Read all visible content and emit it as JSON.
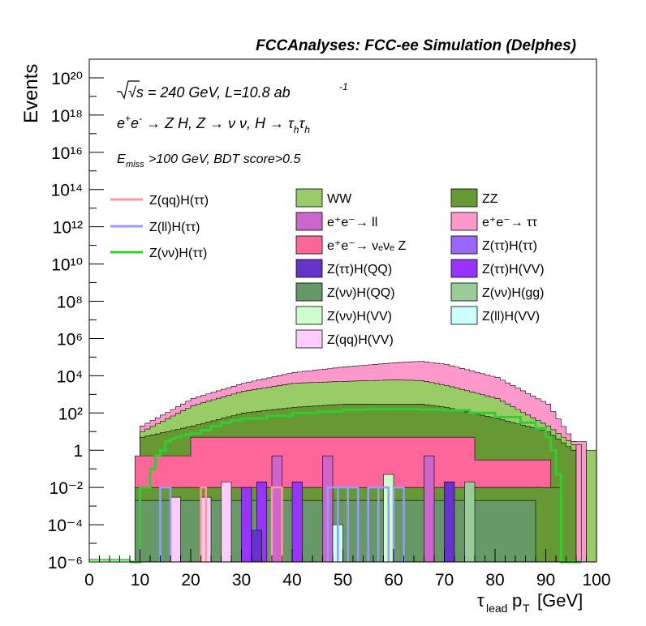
{
  "header": {
    "title": "FCCAnalyses: FCC-ee Simulation (Delphes)"
  },
  "annotations": {
    "line1": "√s = 240 GeV, L=10.8 ab",
    "line1_sup": "-1",
    "line2": "e⁺e⁻ → Z H, Z → νν, H → τₕτₕ",
    "line3_main": ">100 GeV, BDT score>0.5",
    "line3_sym": "E",
    "line3_sub": "miss"
  },
  "colors": {
    "WW": "#99cc66",
    "ZZ": "#669933",
    "ee_ll": "#cc66cc",
    "ee_tautau": "#ff99cc",
    "ee_nunuZ": "#ff6699",
    "ZtautauHtautau": "#9966ff",
    "ZtautauHQQ": "#6633cc",
    "ZtautauHVV": "#9933ff",
    "ZnunuHQQ": "#669966",
    "ZnunuHgg": "#99cc99",
    "ZnunuHVV": "#ccffcc",
    "ZllHVV": "#ccffff",
    "ZqqHVV": "#ffccff",
    "sig_qq": "#ff9999",
    "sig_ll": "#9999ff",
    "sig_nunu": "#33cc33"
  },
  "chart_data": {
    "type": "area",
    "title": "FCCAnalyses: FCC-ee Simulation (Delphes)",
    "xlabel": "τ_lead p_T [GeV]",
    "ylabel": "Events",
    "xlim": [
      0,
      100
    ],
    "ylim": [
      1e-06,
      1e+21
    ],
    "y_scale": "log",
    "legend_position": "top",
    "x_ticks": [
      "0",
      "10",
      "20",
      "30",
      "40",
      "50",
      "60",
      "70",
      "80",
      "90",
      "100"
    ],
    "y_ticks": [
      "10⁻⁶",
      "10⁻⁴",
      "10⁻²",
      "1",
      "10²",
      "10⁴",
      "10⁶",
      "10⁸",
      "10¹⁰",
      "10¹²",
      "10¹⁴",
      "10¹⁶",
      "10¹⁸",
      "10²⁰"
    ],
    "stacked_background_top_envelope": [
      {
        "x": 10,
        "ee_tautau": 20,
        "WW": 10,
        "ZZ": 5,
        "ee_nunuZ": 0.5
      },
      {
        "x": 20,
        "ee_tautau": 600,
        "WW": 250,
        "ZZ": 20,
        "ee_nunuZ": 5
      },
      {
        "x": 30,
        "ee_tautau": 4000,
        "WW": 1500,
        "ZZ": 100,
        "ee_nunuZ": 5
      },
      {
        "x": 40,
        "ee_tautau": 15000,
        "WW": 4000,
        "ZZ": 200,
        "ee_nunuZ": 5
      },
      {
        "x": 50,
        "ee_tautau": 30000,
        "WW": 5000,
        "ZZ": 300,
        "ee_nunuZ": 5
      },
      {
        "x": 60,
        "ee_tautau": 50000,
        "WW": 6000,
        "ZZ": 300,
        "ee_nunuZ": 5
      },
      {
        "x": 65,
        "ee_tautau": 60000,
        "WW": 5500,
        "ZZ": 300,
        "ee_nunuZ": 5
      },
      {
        "x": 70,
        "ee_tautau": 40000,
        "WW": 3000,
        "ZZ": 200,
        "ee_nunuZ": 2
      },
      {
        "x": 80,
        "ee_tautau": 8000,
        "WW": 600,
        "ZZ": 50,
        "ee_nunuZ": 0.1
      },
      {
        "x": 90,
        "ee_tautau": 300,
        "WW": 20,
        "ZZ": 10,
        "ee_nunuZ": 0
      },
      {
        "x": 95,
        "ee_tautau": 3,
        "WW": 2,
        "ZZ": 1,
        "ee_nunuZ": 0
      }
    ],
    "series": [
      {
        "name": "Z(qq)H(ττ)",
        "style": "line",
        "color": "#ff9999"
      },
      {
        "name": "Z(ll)H(ττ)",
        "style": "line",
        "color": "#9999ff"
      },
      {
        "name": "Z(νν)H(ττ)",
        "style": "line",
        "color": "#33cc33",
        "x": [
          8,
          9,
          10,
          11,
          12,
          13,
          14,
          15,
          16,
          17,
          18,
          19,
          20,
          22,
          24,
          26,
          28,
          30,
          35,
          40,
          45,
          50,
          55,
          60,
          65,
          70,
          75,
          80,
          85,
          88,
          90,
          91,
          92,
          93,
          94,
          95,
          96,
          97
        ],
        "values": [
          1e-06,
          1e-06,
          0.01,
          0.01,
          0.1,
          0.5,
          1,
          3,
          4,
          5,
          6,
          7,
          8,
          12,
          20,
          30,
          40,
          50,
          70,
          100,
          120,
          150,
          160,
          160,
          150,
          140,
          100,
          60,
          30,
          15,
          5,
          1,
          0.05,
          1e-06,
          1e-06,
          1e-06,
          1e-06,
          1e-06
        ]
      },
      {
        "name": "WW",
        "style": "fill",
        "color": "#99cc66"
      },
      {
        "name": "ZZ",
        "style": "fill",
        "color": "#669933"
      },
      {
        "name": "e⁺e⁻→ ll",
        "style": "fill",
        "color": "#cc66cc"
      },
      {
        "name": "e⁺e⁻→ ττ",
        "style": "fill",
        "color": "#ff99cc"
      },
      {
        "name": "e⁺e⁻→ νₑνₑ Z",
        "style": "fill",
        "color": "#ff6699"
      },
      {
        "name": "Z(ττ)H(ττ)",
        "style": "fill",
        "color": "#9966ff"
      },
      {
        "name": "Z(ττ)H(QQ)",
        "style": "fill",
        "color": "#6633cc"
      },
      {
        "name": "Z(ττ)H(VV)",
        "style": "fill",
        "color": "#9933ff"
      },
      {
        "name": "Z(νν)H(QQ)",
        "style": "fill",
        "color": "#669966"
      },
      {
        "name": "Z(νν)H(gg)",
        "style": "fill",
        "color": "#99cc99"
      },
      {
        "name": "Z(νν)H(VV)",
        "style": "fill",
        "color": "#ccffcc"
      },
      {
        "name": "Z(ll)H(VV)",
        "style": "fill",
        "color": "#ccffff"
      },
      {
        "name": "Z(qq)H(VV)",
        "style": "fill",
        "color": "#ffccff"
      }
    ]
  }
}
